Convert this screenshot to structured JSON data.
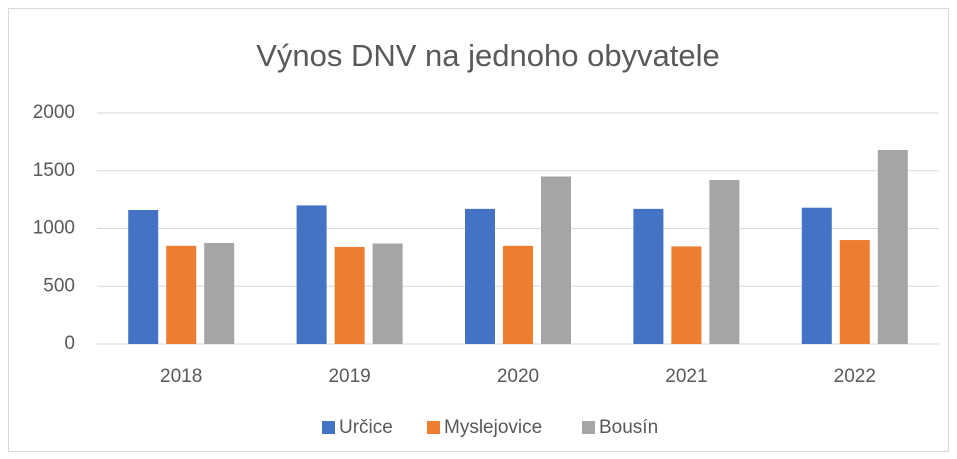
{
  "chart_data": {
    "type": "bar",
    "title": "Výnos DNV na jednoho obyvatele",
    "categories": [
      "2018",
      "2019",
      "2020",
      "2021",
      "2022"
    ],
    "series": [
      {
        "name": "Určice",
        "color": "#4472c4",
        "values": [
          1160,
          1200,
          1170,
          1170,
          1180
        ]
      },
      {
        "name": "Myslejovice",
        "color": "#ed7d31",
        "values": [
          850,
          840,
          850,
          845,
          900
        ]
      },
      {
        "name": "Bousín",
        "color": "#a5a5a5",
        "values": [
          875,
          870,
          1450,
          1420,
          1680
        ]
      }
    ],
    "ylim": [
      0,
      2000
    ],
    "yticks": [
      0,
      500,
      1000,
      1500,
      2000
    ],
    "grid": true,
    "legend": "bottom"
  }
}
